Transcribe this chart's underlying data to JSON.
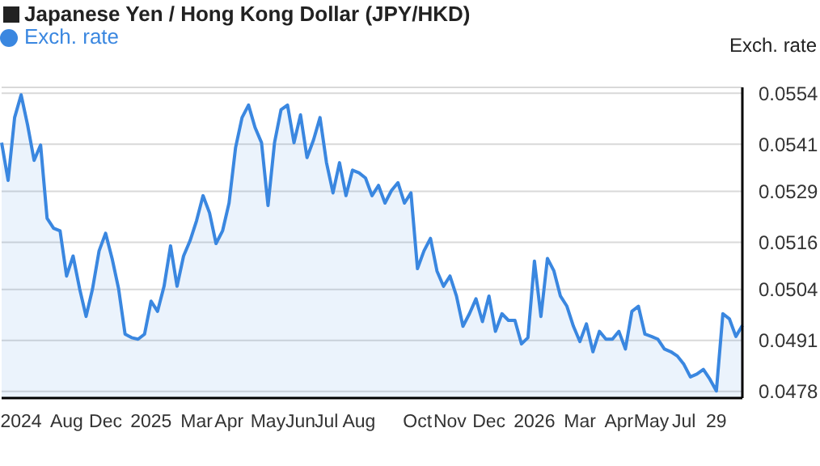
{
  "chart_data": {
    "type": "area",
    "title": "Japanese Yen / Hong Kong Dollar (JPY/HKD)",
    "ylabel": "Exch. rate",
    "categories": [
      null,
      null,
      null,
      "2024",
      null,
      null,
      null,
      null,
      null,
      null,
      "Aug",
      null,
      null,
      null,
      null,
      null,
      "Dec",
      null,
      null,
      null,
      null,
      null,
      null,
      "2025",
      null,
      null,
      null,
      null,
      null,
      null,
      "Mar",
      null,
      null,
      null,
      null,
      "Apr",
      null,
      null,
      null,
      null,
      null,
      "May",
      null,
      null,
      null,
      null,
      "Jun",
      null,
      null,
      null,
      "Jul",
      null,
      null,
      null,
      null,
      "Aug",
      null,
      null,
      null,
      null,
      null,
      null,
      null,
      null,
      "Oct",
      null,
      null,
      null,
      null,
      "Nov",
      null,
      null,
      null,
      null,
      null,
      "Dec",
      null,
      null,
      null,
      null,
      null,
      null,
      "2026",
      null,
      null,
      null,
      null,
      null,
      null,
      "Mar",
      null,
      null,
      null,
      null,
      null,
      "Apr",
      null,
      null,
      null,
      null,
      "May",
      null,
      null,
      null,
      null,
      "Jul",
      null,
      null,
      null,
      null,
      "29",
      null,
      null,
      null,
      null
    ],
    "ylim": [
      0.04763,
      0.05555
    ],
    "yticks": [
      0.0478,
      0.0491,
      0.0504,
      0.0516,
      0.0529,
      0.0541,
      0.0554
    ],
    "grid": "y",
    "legend": "top left",
    "marker": "none",
    "series": [
      {
        "name": "Exch. rate",
        "color": "#3a87e0",
        "values": [
          0.05414,
          0.05318,
          0.05478,
          0.05536,
          0.05459,
          0.05369,
          0.05408,
          0.05221,
          0.05196,
          0.05189,
          0.05074,
          0.05125,
          0.05042,
          0.04971,
          0.05042,
          0.05138,
          0.05183,
          0.05119,
          0.05042,
          0.04926,
          0.04917,
          0.04913,
          0.04926,
          0.0501,
          0.04984,
          0.05048,
          0.05151,
          0.05048,
          0.05125,
          0.05164,
          0.05215,
          0.05279,
          0.05235,
          0.05157,
          0.05189,
          0.0526,
          0.05401,
          0.05478,
          0.0551,
          0.05453,
          0.05414,
          0.05254,
          0.05414,
          0.05498,
          0.0551,
          0.05414,
          0.05485,
          0.05376,
          0.05421,
          0.05478,
          0.05363,
          0.05286,
          0.05363,
          0.05279,
          0.05344,
          0.05337,
          0.05324,
          0.05279,
          0.05305,
          0.0526,
          0.05292,
          0.05312,
          0.0526,
          0.05286,
          0.05093,
          0.05138,
          0.0517,
          0.05087,
          0.05048,
          0.05074,
          0.05023,
          0.04946,
          0.04978,
          0.05016,
          0.04958,
          0.05023,
          0.04933,
          0.04978,
          0.04961,
          0.04961,
          0.04901,
          0.04917,
          0.05112,
          0.04971,
          0.05119,
          0.05087,
          0.05023,
          0.04997,
          0.04946,
          0.04907,
          0.04952,
          0.04881,
          0.04933,
          0.04913,
          0.04913,
          0.04933,
          0.04888,
          0.04984,
          0.04997,
          0.04926,
          0.0492,
          0.04913,
          0.04888,
          0.04881,
          0.0487,
          0.04849,
          0.04817,
          0.04824,
          0.04836,
          0.04811,
          0.04781,
          0.04978,
          0.04965,
          0.0492,
          0.04948
        ]
      }
    ]
  }
}
